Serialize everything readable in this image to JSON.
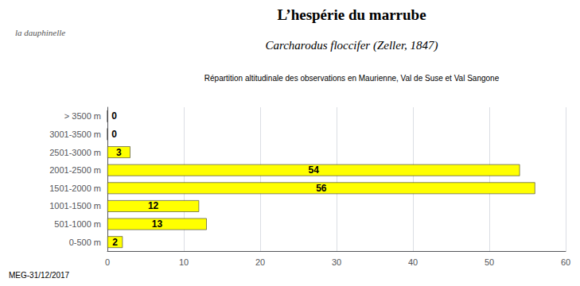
{
  "chart_data": {
    "type": "bar",
    "orientation": "horizontal",
    "title": "L’hespérie du marrube",
    "subtitle": "Carcharodus floccifer (Zeller, 1847)",
    "description": "Répartition altitudinale des observations en Maurienne, Val de Suse et Val Sangone",
    "footer": "MEG-31/12/2017",
    "logo_text": "la dauphinelle",
    "categories": [
      "> 3500 m",
      "3001-3500 m",
      "2501-3000 m",
      "2001-2500 m",
      "1501-2000 m",
      "1001-1500 m",
      "501-1000 m",
      "0-500 m"
    ],
    "values": [
      0,
      0,
      3,
      54,
      56,
      12,
      13,
      2
    ],
    "color": "#FFFF00",
    "xlim": [
      0,
      60
    ],
    "xticks": [
      0,
      10,
      20,
      30,
      40,
      50,
      60
    ],
    "grid": true,
    "data_labels": true
  }
}
